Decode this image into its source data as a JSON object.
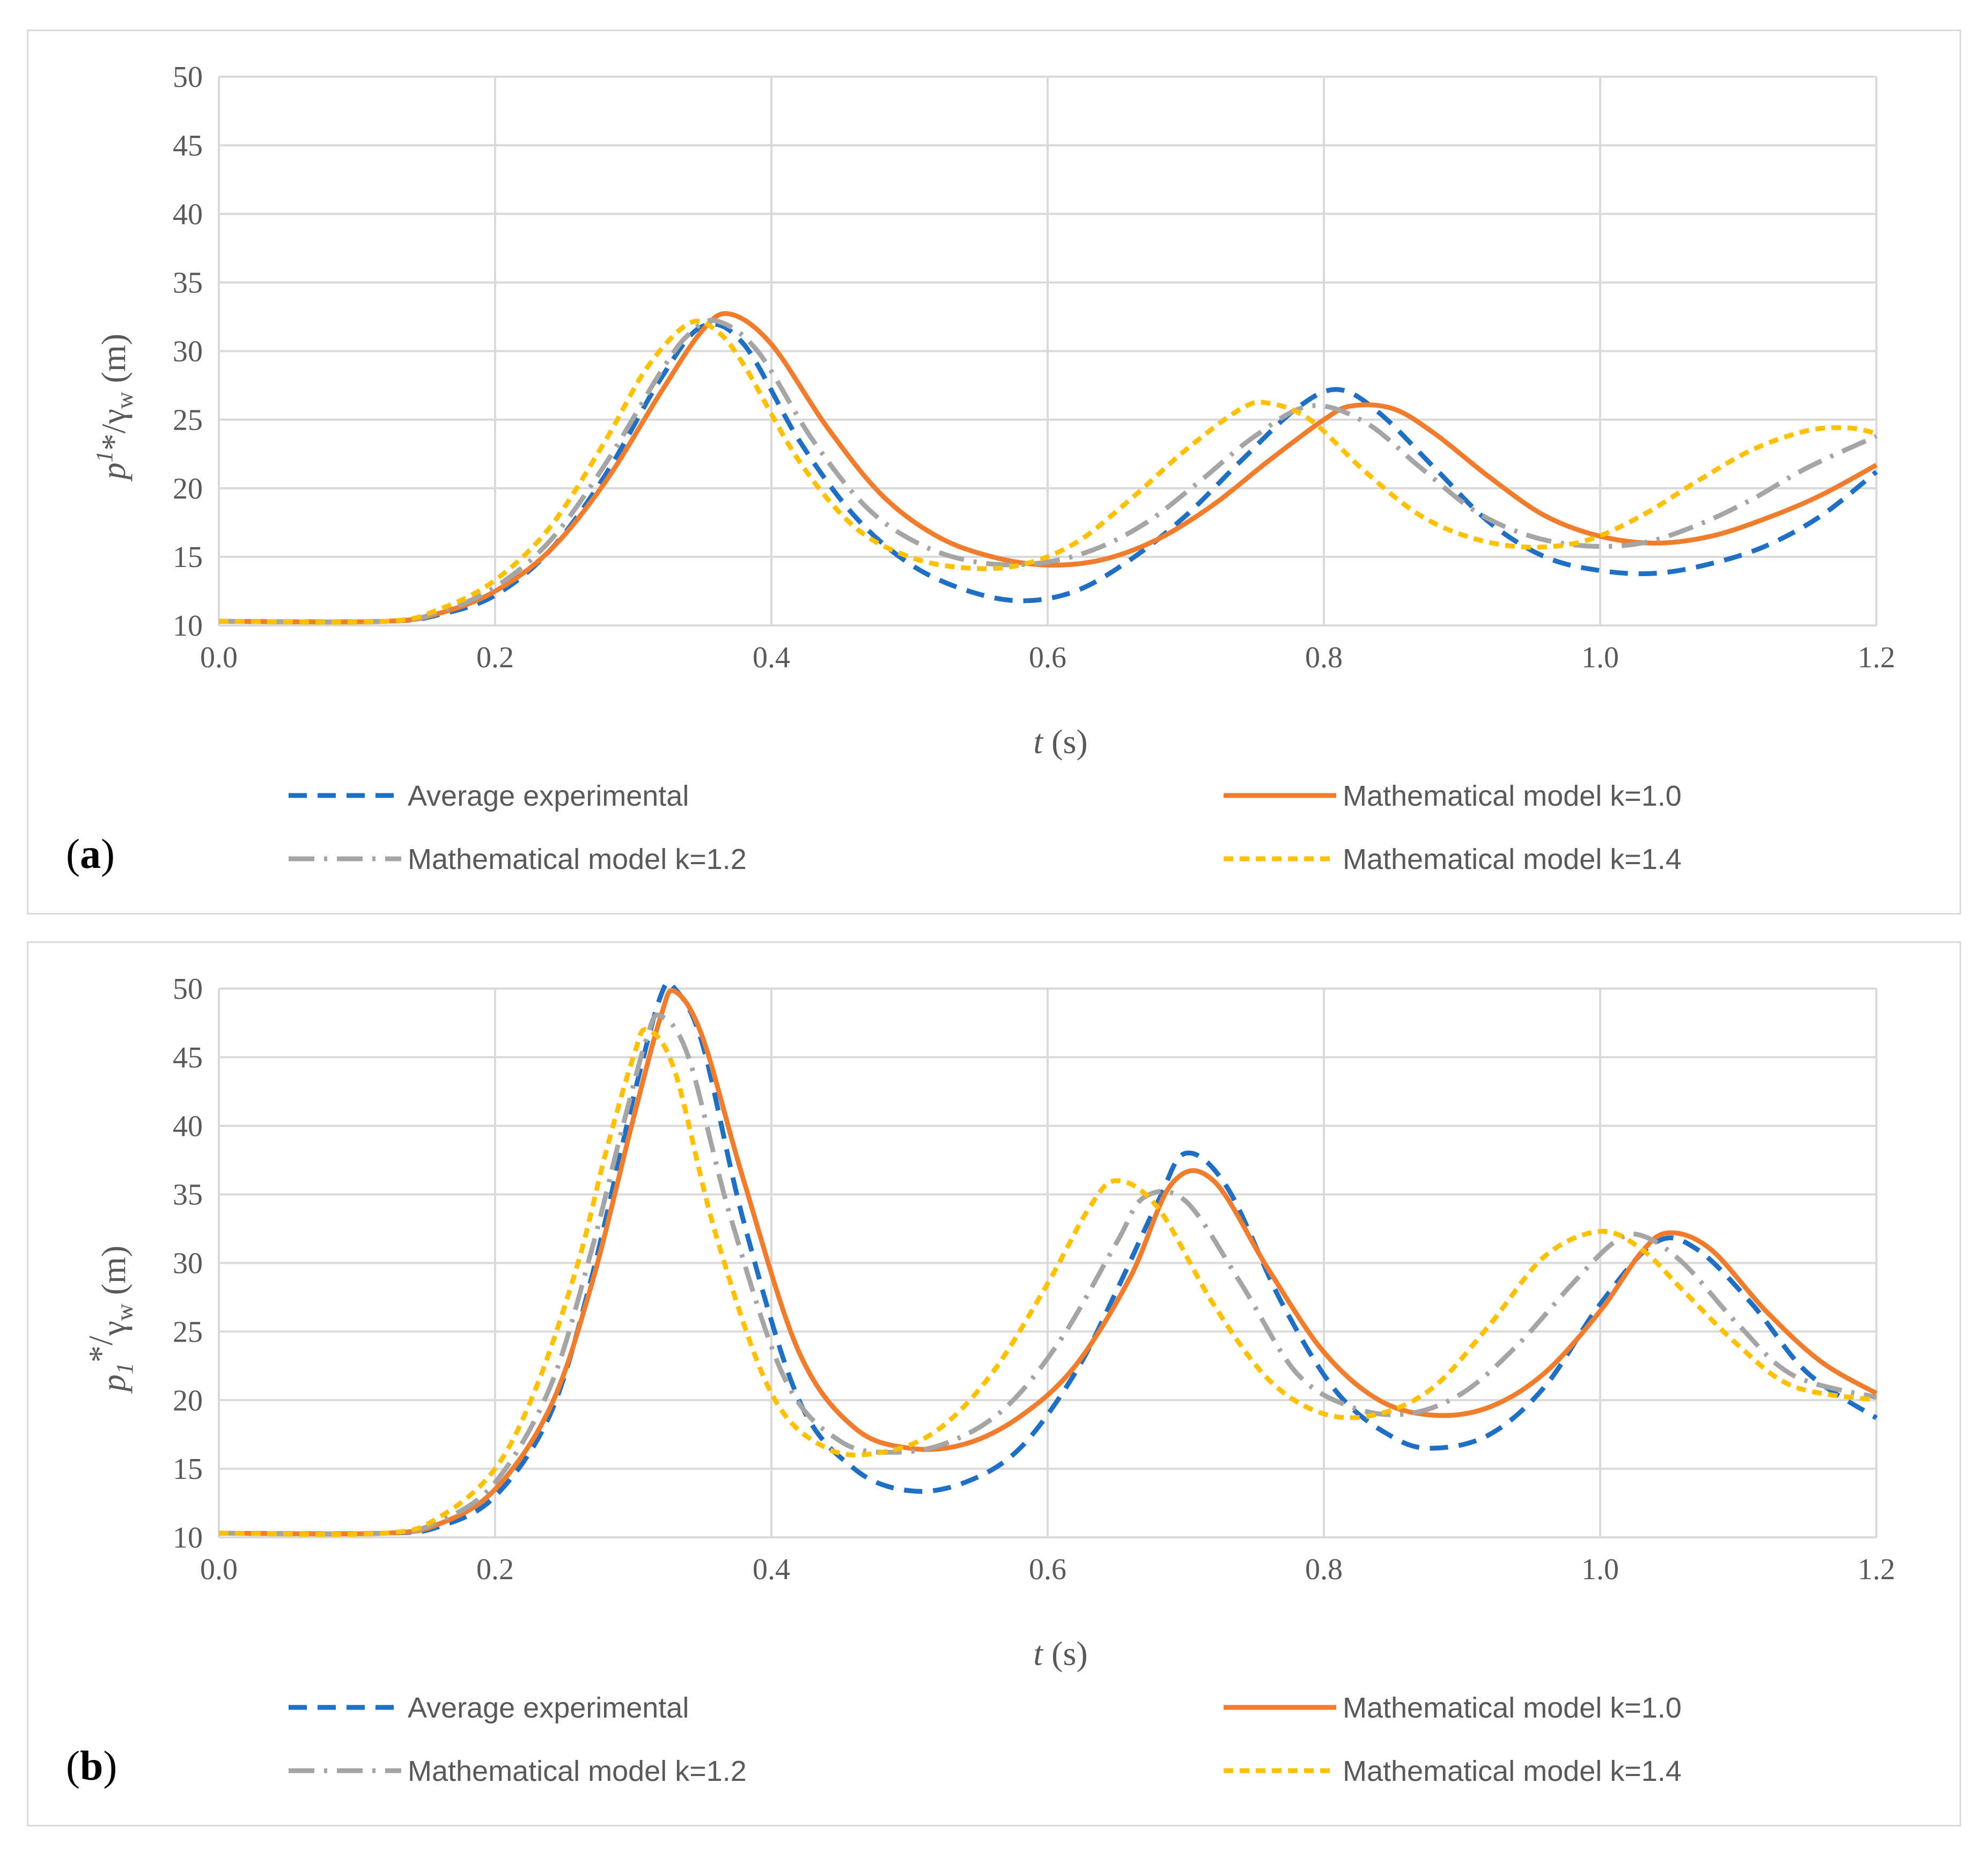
{
  "chart_data": [
    {
      "type": "line",
      "panel_label": "a",
      "title": "",
      "xlabel": {
        "var": "t",
        "unit": " (s)"
      },
      "ylabel": {
        "base": "p",
        "sup": "1",
        "star": "*/",
        "gamma": "γ",
        "sub": "w",
        "unit": " (m)"
      },
      "xlim": [
        0,
        1.2
      ],
      "ylim": [
        10,
        50
      ],
      "xticks": [
        "0.0",
        "0.2",
        "0.4",
        "0.6",
        "0.8",
        "1.0",
        "1.2"
      ],
      "yticks": [
        "10",
        "15",
        "20",
        "25",
        "30",
        "35",
        "40",
        "45",
        "50"
      ],
      "grid": true,
      "legend_position": "bottom",
      "series": [
        {
          "name": "Average experimental",
          "color": "#1f6fc5",
          "style": "dash",
          "x": [
            0,
            0.12,
            0.16,
            0.2,
            0.24,
            0.28,
            0.32,
            0.35,
            0.38,
            0.42,
            0.46,
            0.5,
            0.54,
            0.58,
            0.62,
            0.66,
            0.7,
            0.74,
            0.78,
            0.81,
            0.84,
            0.88,
            0.92,
            0.96,
            1.0,
            1.04,
            1.08,
            1.12,
            1.16,
            1.2
          ],
          "y": [
            10.3,
            10.3,
            10.8,
            12.2,
            15.5,
            21.0,
            28.0,
            31.8,
            30.5,
            23.5,
            18.0,
            14.5,
            12.6,
            11.8,
            12.5,
            14.8,
            18.0,
            22.0,
            25.8,
            27.2,
            25.5,
            21.5,
            17.5,
            15.0,
            14.0,
            13.8,
            14.5,
            15.8,
            18.0,
            21.2
          ]
        },
        {
          "name": "Mathematical model k=1.0",
          "color": "#f07d2d",
          "style": "solid",
          "x": [
            0,
            0.12,
            0.16,
            0.2,
            0.24,
            0.28,
            0.32,
            0.35,
            0.37,
            0.4,
            0.44,
            0.48,
            0.52,
            0.56,
            0.6,
            0.64,
            0.68,
            0.72,
            0.76,
            0.8,
            0.82,
            0.85,
            0.88,
            0.92,
            0.96,
            1.0,
            1.04,
            1.08,
            1.12,
            1.16,
            1.2
          ],
          "y": [
            10.3,
            10.3,
            10.9,
            12.5,
            15.5,
            20.5,
            27.0,
            31.5,
            32.7,
            30.5,
            24.5,
            19.5,
            16.5,
            15.0,
            14.4,
            14.8,
            16.3,
            18.8,
            22.0,
            25.0,
            26.0,
            25.8,
            24.0,
            20.8,
            18.0,
            16.5,
            16.0,
            16.5,
            17.8,
            19.5,
            21.7
          ]
        },
        {
          "name": "Mathematical model k=1.2",
          "color": "#a5a5a5",
          "style": "dashdot",
          "x": [
            0,
            0.12,
            0.16,
            0.2,
            0.24,
            0.28,
            0.32,
            0.34,
            0.36,
            0.39,
            0.43,
            0.47,
            0.51,
            0.55,
            0.59,
            0.63,
            0.67,
            0.71,
            0.75,
            0.79,
            0.83,
            0.87,
            0.91,
            0.95,
            0.99,
            1.03,
            1.07,
            1.11,
            1.15,
            1.2
          ],
          "y": [
            10.3,
            10.3,
            11.0,
            12.8,
            16.2,
            21.8,
            28.5,
            31.2,
            32.2,
            30.0,
            23.5,
            18.5,
            15.8,
            14.6,
            14.5,
            15.4,
            17.4,
            20.5,
            23.8,
            26.0,
            24.8,
            21.5,
            18.3,
            16.5,
            15.8,
            16.0,
            17.3,
            19.2,
            21.5,
            23.8
          ]
        },
        {
          "name": "Mathematical model k=1.4",
          "color": "#ffc000",
          "style": "shortdash",
          "x": [
            0,
            0.12,
            0.16,
            0.2,
            0.24,
            0.28,
            0.31,
            0.34,
            0.36,
            0.38,
            0.42,
            0.46,
            0.5,
            0.54,
            0.58,
            0.62,
            0.66,
            0.7,
            0.74,
            0.76,
            0.79,
            0.83,
            0.87,
            0.91,
            0.95,
            0.99,
            1.03,
            1.07,
            1.11,
            1.15,
            1.18,
            1.2
          ],
          "y": [
            10.3,
            10.3,
            11.2,
            13.3,
            17.2,
            23.5,
            28.8,
            32.0,
            31.5,
            29.0,
            22.0,
            17.2,
            15.0,
            14.2,
            14.4,
            16.0,
            19.2,
            22.8,
            25.8,
            26.2,
            25.0,
            21.2,
            18.0,
            16.3,
            15.7,
            16.2,
            18.0,
            20.5,
            22.8,
            24.2,
            24.4,
            24.0
          ]
        }
      ]
    },
    {
      "type": "line",
      "panel_label": "b",
      "title": "",
      "xlabel": {
        "var": "t",
        "unit": " (s)"
      },
      "ylabel": {
        "base": "p",
        "sub1": "1",
        "star": "*/",
        "gamma": "γ",
        "sub": "w",
        "unit": " (m)"
      },
      "xlim": [
        0,
        1.2
      ],
      "ylim": [
        10,
        50
      ],
      "xticks": [
        "0.0",
        "0.2",
        "0.4",
        "0.6",
        "0.8",
        "1.0",
        "1.2"
      ],
      "yticks": [
        "10",
        "15",
        "20",
        "25",
        "30",
        "35",
        "40",
        "45",
        "50"
      ],
      "grid": true,
      "legend_position": "bottom",
      "series": [
        {
          "name": "Average experimental",
          "color": "#1f6fc5",
          "style": "dash",
          "x": [
            0,
            0.12,
            0.16,
            0.2,
            0.24,
            0.27,
            0.3,
            0.32,
            0.33,
            0.35,
            0.38,
            0.42,
            0.46,
            0.5,
            0.54,
            0.58,
            0.62,
            0.65,
            0.68,
            0.7,
            0.73,
            0.77,
            0.81,
            0.85,
            0.88,
            0.92,
            0.96,
            1.0,
            1.04,
            1.07,
            1.11,
            1.15,
            1.2
          ],
          "y": [
            10.3,
            10.3,
            10.8,
            13.0,
            19.0,
            29.0,
            42.0,
            49.5,
            50.0,
            46.0,
            33.0,
            20.0,
            15.0,
            13.4,
            14.0,
            16.5,
            22.0,
            28.0,
            34.5,
            38.0,
            35.5,
            27.0,
            20.5,
            17.3,
            16.5,
            17.5,
            21.0,
            27.0,
            31.5,
            31.0,
            27.0,
            22.0,
            18.7
          ]
        },
        {
          "name": "Mathematical model k=1.0",
          "color": "#f07d2d",
          "style": "solid",
          "x": [
            0,
            0.12,
            0.16,
            0.2,
            0.24,
            0.27,
            0.3,
            0.32,
            0.33,
            0.35,
            0.38,
            0.42,
            0.46,
            0.5,
            0.54,
            0.58,
            0.62,
            0.66,
            0.69,
            0.72,
            0.76,
            0.8,
            0.84,
            0.88,
            0.92,
            0.96,
            1.0,
            1.03,
            1.05,
            1.08,
            1.12,
            1.16,
            1.2
          ],
          "y": [
            10.3,
            10.3,
            11.0,
            13.5,
            19.5,
            28.5,
            40.5,
            48.0,
            49.8,
            46.5,
            36.0,
            23.5,
            18.0,
            16.5,
            16.8,
            18.8,
            22.5,
            29.0,
            35.8,
            36.0,
            29.5,
            23.5,
            20.0,
            18.9,
            19.5,
            22.0,
            26.5,
            30.8,
            32.2,
            31.0,
            26.5,
            22.8,
            20.5
          ]
        },
        {
          "name": "Mathematical model k=1.2",
          "color": "#a5a5a5",
          "style": "dashdot",
          "x": [
            0,
            0.12,
            0.16,
            0.2,
            0.24,
            0.27,
            0.29,
            0.31,
            0.32,
            0.34,
            0.37,
            0.41,
            0.45,
            0.49,
            0.53,
            0.57,
            0.61,
            0.65,
            0.67,
            0.7,
            0.74,
            0.78,
            0.82,
            0.86,
            0.9,
            0.94,
            0.98,
            1.01,
            1.03,
            1.06,
            1.1,
            1.14,
            1.2
          ],
          "y": [
            10.3,
            10.3,
            11.2,
            14.0,
            21.0,
            31.0,
            39.0,
            46.5,
            48.0,
            45.0,
            33.5,
            21.5,
            17.0,
            16.2,
            17.0,
            19.5,
            24.5,
            31.5,
            34.8,
            34.5,
            28.5,
            22.0,
            19.5,
            19.0,
            20.5,
            24.0,
            28.5,
            31.5,
            32.0,
            30.0,
            25.5,
            21.8,
            20.2
          ]
        },
        {
          "name": "Mathematical model k=1.4",
          "color": "#ffc000",
          "style": "shortdash",
          "x": [
            0,
            0.12,
            0.16,
            0.2,
            0.23,
            0.26,
            0.28,
            0.3,
            0.31,
            0.33,
            0.36,
            0.4,
            0.44,
            0.48,
            0.52,
            0.56,
            0.6,
            0.63,
            0.65,
            0.68,
            0.72,
            0.76,
            0.8,
            0.84,
            0.88,
            0.92,
            0.96,
            1.0,
            1.03,
            1.06,
            1.1,
            1.14,
            1.2
          ],
          "y": [
            10.3,
            10.3,
            11.5,
            15.0,
            21.0,
            30.0,
            38.0,
            45.0,
            47.0,
            44.0,
            32.0,
            20.5,
            16.5,
            16.2,
            17.8,
            22.0,
            28.5,
            34.0,
            36.0,
            34.0,
            27.0,
            21.5,
            19.0,
            19.0,
            21.0,
            25.5,
            30.5,
            32.3,
            31.0,
            28.0,
            24.0,
            21.0,
            20.0
          ]
        }
      ]
    }
  ]
}
